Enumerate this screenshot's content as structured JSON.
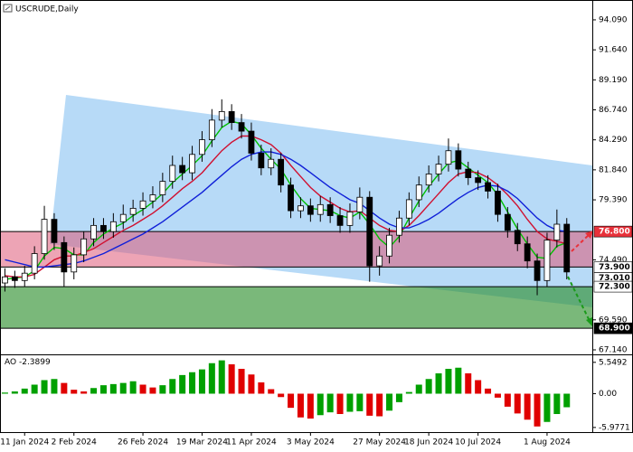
{
  "chart_data": [
    {
      "type": "candlestick",
      "title": "USCRUDE,Daily",
      "categories": [
        null,
        null,
        "11 Jan 2024",
        null,
        null,
        null,
        null,
        "2 Feb 2024",
        null,
        null,
        null,
        null,
        null,
        null,
        "26 Feb 2024",
        null,
        null,
        null,
        null,
        null,
        "19 Mar 2024",
        null,
        null,
        null,
        null,
        "11 Apr 2024",
        null,
        null,
        null,
        null,
        null,
        "3 May 2024",
        null,
        null,
        null,
        null,
        null,
        null,
        "27 May 2024",
        null,
        null,
        null,
        null,
        "18 Jun 2024",
        null,
        null,
        null,
        null,
        "10 Jul 2024",
        null,
        null,
        null,
        null,
        null,
        null,
        "1 Aug 2024",
        null,
        null
      ],
      "open": [
        72.6,
        73.1,
        72.8,
        73.4,
        75.0,
        77.8,
        75.9,
        73.5,
        74.9,
        76.2,
        77.3,
        76.8,
        77.6,
        78.2,
        78.7,
        79.3,
        79.8,
        80.9,
        82.2,
        81.6,
        83.1,
        84.3,
        85.9,
        86.6,
        85.7,
        85.0,
        83.2,
        82.0,
        82.7,
        80.6,
        78.5,
        78.9,
        78.2,
        79.0,
        78.1,
        77.3,
        78.4,
        79.6,
        74.0,
        74.8,
        76.5,
        77.9,
        79.4,
        80.6,
        81.5,
        82.3,
        83.4,
        81.9,
        81.2,
        80.8,
        80.1,
        78.2,
        76.9,
        75.8,
        74.4,
        72.8,
        76.1,
        77.4
      ],
      "high": [
        73.8,
        73.6,
        74.0,
        75.6,
        78.9,
        78.3,
        76.4,
        75.5,
        76.8,
        77.9,
        77.9,
        78.3,
        79.0,
        79.4,
        80.0,
        80.5,
        81.6,
        83.0,
        82.9,
        83.8,
        85.0,
        86.8,
        87.6,
        87.2,
        86.4,
        85.7,
        83.9,
        83.6,
        83.2,
        81.2,
        79.6,
        79.5,
        79.7,
        79.6,
        78.8,
        79.1,
        80.4,
        80.1,
        75.6,
        77.1,
        78.5,
        80.0,
        81.3,
        82.2,
        83.0,
        84.4,
        84.0,
        82.5,
        81.8,
        81.4,
        80.7,
        78.8,
        77.5,
        76.4,
        75.0,
        76.7,
        78.6,
        77.9
      ],
      "low": [
        71.9,
        72.2,
        72.3,
        72.9,
        74.5,
        75.3,
        72.3,
        72.9,
        74.3,
        75.6,
        76.2,
        76.3,
        77.0,
        77.6,
        78.1,
        78.7,
        79.2,
        80.3,
        81.0,
        81.0,
        82.5,
        83.7,
        85.3,
        85.1,
        84.4,
        82.6,
        81.4,
        81.4,
        80.0,
        77.9,
        77.9,
        77.6,
        77.6,
        77.5,
        76.7,
        76.7,
        77.8,
        72.7,
        73.2,
        74.2,
        75.9,
        77.3,
        78.8,
        80.0,
        80.9,
        81.7,
        81.3,
        80.6,
        80.2,
        79.5,
        77.6,
        76.3,
        75.2,
        73.8,
        71.6,
        72.3,
        75.5,
        72.9
      ],
      "close": [
        73.1,
        72.8,
        73.4,
        75.0,
        77.8,
        75.9,
        73.5,
        74.9,
        76.2,
        77.3,
        76.8,
        77.6,
        78.2,
        78.7,
        79.3,
        79.8,
        80.9,
        82.2,
        81.6,
        83.1,
        84.3,
        85.9,
        86.6,
        85.7,
        85.0,
        83.2,
        82.0,
        82.7,
        80.6,
        78.5,
        78.9,
        78.2,
        79.0,
        78.1,
        77.3,
        78.4,
        79.6,
        74.0,
        74.8,
        76.5,
        77.9,
        79.4,
        80.6,
        81.5,
        82.3,
        83.4,
        81.9,
        81.2,
        80.8,
        80.1,
        78.2,
        76.9,
        75.8,
        74.4,
        72.8,
        76.1,
        77.4,
        73.5
      ],
      "candle_color": "#000000",
      "bull_fill": "#ffffff",
      "series": [
        {
          "color": "#00c000",
          "values": [
            72.9,
            73.0,
            73.1,
            73.6,
            74.8,
            75.5,
            75.4,
            74.9,
            74.9,
            75.9,
            76.6,
            77.1,
            77.5,
            78.1,
            78.6,
            79.2,
            79.9,
            80.8,
            81.5,
            82.2,
            83.0,
            84.2,
            85.3,
            85.8,
            85.6,
            84.7,
            83.6,
            82.7,
            81.9,
            80.6,
            79.5,
            78.7,
            78.6,
            78.5,
            78.1,
            77.9,
            78.4,
            77.4,
            76.2,
            75.5,
            76.4,
            77.9,
            79.3,
            80.5,
            81.5,
            82.4,
            82.6,
            82.0,
            81.4,
            80.8,
            79.8,
            78.4,
            77.0,
            75.8,
            74.7,
            74.6,
            75.6,
            75.9
          ]
        },
        {
          "color": "#d01030",
          "values": [
            73.2,
            73.1,
            73.1,
            73.3,
            73.9,
            74.5,
            74.8,
            74.8,
            75.1,
            75.4,
            75.9,
            76.4,
            76.9,
            77.3,
            77.8,
            78.3,
            78.9,
            79.6,
            80.3,
            80.9,
            81.6,
            82.5,
            83.4,
            84.1,
            84.6,
            84.6,
            84.3,
            83.9,
            83.2,
            82.2,
            81.3,
            80.4,
            79.7,
            79.2,
            78.7,
            78.4,
            78.5,
            77.9,
            77.3,
            76.9,
            76.8,
            77.3,
            78.1,
            79.0,
            79.9,
            80.8,
            81.5,
            81.7,
            81.6,
            81.2,
            80.6,
            79.8,
            78.9,
            77.8,
            76.8,
            76.2,
            76.0,
            75.8
          ]
        },
        {
          "color": "#1020d8",
          "values": [
            74.5,
            74.3,
            74.1,
            73.9,
            73.9,
            74.0,
            74.1,
            74.2,
            74.4,
            74.7,
            75.0,
            75.4,
            75.8,
            76.2,
            76.6,
            77.1,
            77.6,
            78.2,
            78.8,
            79.4,
            80.0,
            80.7,
            81.4,
            82.1,
            82.7,
            83.1,
            83.3,
            83.3,
            83.1,
            82.7,
            82.2,
            81.6,
            81.0,
            80.4,
            79.9,
            79.4,
            79.1,
            78.5,
            77.9,
            77.4,
            77.1,
            77.1,
            77.4,
            77.8,
            78.3,
            78.9,
            79.5,
            80.0,
            80.4,
            80.6,
            80.5,
            80.1,
            79.5,
            78.7,
            77.9,
            77.3,
            76.9,
            76.8
          ]
        }
      ],
      "levels": [
        {
          "value": 76.8,
          "label": "76.800",
          "bg": "#e8313a",
          "fg": "#ffffff",
          "line": true,
          "zone": "rgba(222,90,120,0.55)"
        },
        {
          "value": 73.9,
          "label": "73.900",
          "bg": "#ffffff",
          "fg": "#000000",
          "line": true
        },
        {
          "value": 73.01,
          "label": "73.010",
          "bg": "#ffffff",
          "fg": "#000000",
          "line": false
        },
        {
          "value": 72.3,
          "label": "72.300",
          "bg": "#ffffff",
          "fg": "#000000",
          "line": true,
          "zone": "rgba(40,140,40,0.62)"
        },
        {
          "value": 68.9,
          "label": "68.900",
          "bg": "#000000",
          "fg": "#ffffff",
          "line": true
        }
      ],
      "ylim": [
        66.77,
        95.71
      ],
      "yticks": [
        {
          "value": 94.09,
          "label": "94.090"
        },
        {
          "value": 91.64,
          "label": "91.640"
        },
        {
          "value": 89.19,
          "label": "89.190"
        },
        {
          "value": 86.74,
          "label": "86.740"
        },
        {
          "value": 84.29,
          "label": "84.290"
        },
        {
          "value": 81.84,
          "label": "81.840"
        },
        {
          "value": 79.39,
          "label": "79.390"
        },
        {
          "value": 74.49,
          "label": "74.490"
        },
        {
          "value": 69.59,
          "label": "69.590"
        },
        {
          "value": 67.14,
          "label": "67.140"
        }
      ]
    },
    {
      "type": "bar",
      "title": "AO",
      "current": -2.3899,
      "values": [
        0.2,
        0.4,
        0.9,
        1.6,
        2.4,
        2.6,
        1.9,
        0.7,
        0.4,
        1.0,
        1.5,
        1.7,
        1.9,
        2.2,
        1.6,
        1.1,
        1.5,
        2.6,
        3.3,
        3.8,
        4.3,
        5.4,
        5.9,
        5.2,
        4.4,
        3.4,
        2.0,
        0.8,
        -0.6,
        -2.5,
        -4.2,
        -4.4,
        -3.8,
        -3.3,
        -3.6,
        -3.2,
        -3.1,
        -3.9,
        -4.0,
        -3.0,
        -1.5,
        0.3,
        1.6,
        2.6,
        3.6,
        4.4,
        4.6,
        3.6,
        2.4,
        0.9,
        -0.7,
        -2.3,
        -3.5,
        -4.6,
        -5.8,
        -5.0,
        -3.6,
        -2.4
      ],
      "up_color": "#00a000",
      "down_color": "#e00000",
      "ylim": [
        -6.8,
        6.8
      ],
      "yticks": [
        5.5492,
        {
          "value": 0,
          "label": "0.00"
        },
        -5.9771
      ]
    }
  ]
}
